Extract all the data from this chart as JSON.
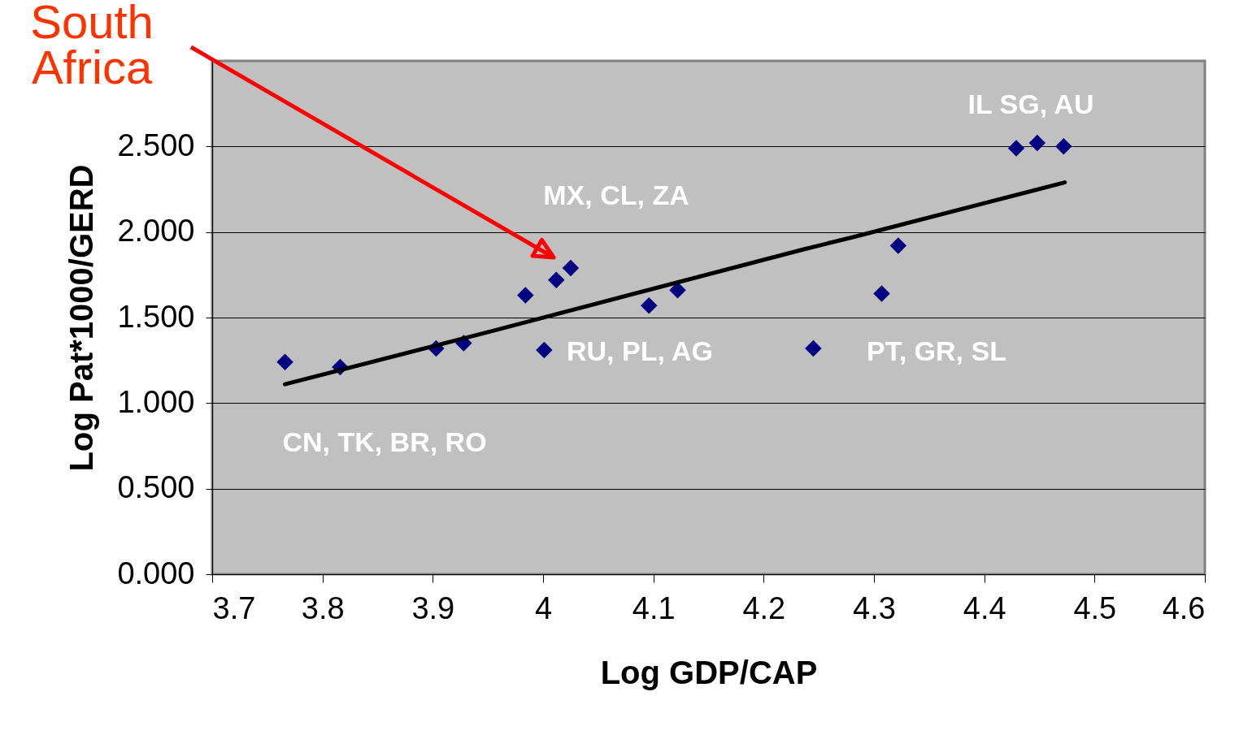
{
  "chart_data": {
    "type": "scatter",
    "xlabel": "Log GDP/CAP",
    "ylabel": "Log Pat*1000/GERD",
    "xlim": [
      3.7,
      4.6
    ],
    "ylim": [
      0,
      3.0
    ],
    "xticks": [
      3.7,
      3.8,
      3.9,
      4,
      4.1,
      4.2,
      4.3,
      4.4,
      4.5,
      4.6
    ],
    "yticks": [
      {
        "value": 0,
        "label": "0.000"
      },
      {
        "value": 0.5,
        "label": "0.500"
      },
      {
        "value": 1,
        "label": "1.000"
      },
      {
        "value": 1.5,
        "label": "1.500"
      },
      {
        "value": 2,
        "label": "2.000"
      },
      {
        "value": 2.5,
        "label": "2.500"
      }
    ],
    "grid": "y",
    "series": [
      {
        "type": "scatter",
        "marker": "diamond",
        "color": "#000080",
        "x": [
          3.766,
          3.816,
          3.903,
          3.928,
          3.984,
          4.001,
          4.012,
          4.025,
          4.096,
          4.122,
          4.245,
          4.307,
          4.322,
          4.429,
          4.448,
          4.472
        ],
        "values": [
          1.24,
          1.21,
          1.32,
          1.35,
          1.63,
          1.31,
          1.72,
          1.79,
          1.57,
          1.66,
          1.32,
          1.64,
          1.92,
          2.49,
          2.52,
          2.5
        ]
      },
      {
        "type": "line",
        "marker": "none",
        "line_style": "solid",
        "color": "#000000",
        "x": [
          3.766,
          3.953,
          4.237,
          4.281,
          4.473
        ],
        "values": [
          1.11,
          1.42,
          1.9,
          1.97,
          2.29
        ]
      }
    ],
    "annotations": [
      "IL SG, AU",
      "MX, CL, ZA",
      "RU, PL, AG",
      "PT, GR, SL",
      "CN, TK, BR, RO",
      "South Africa"
    ]
  }
}
